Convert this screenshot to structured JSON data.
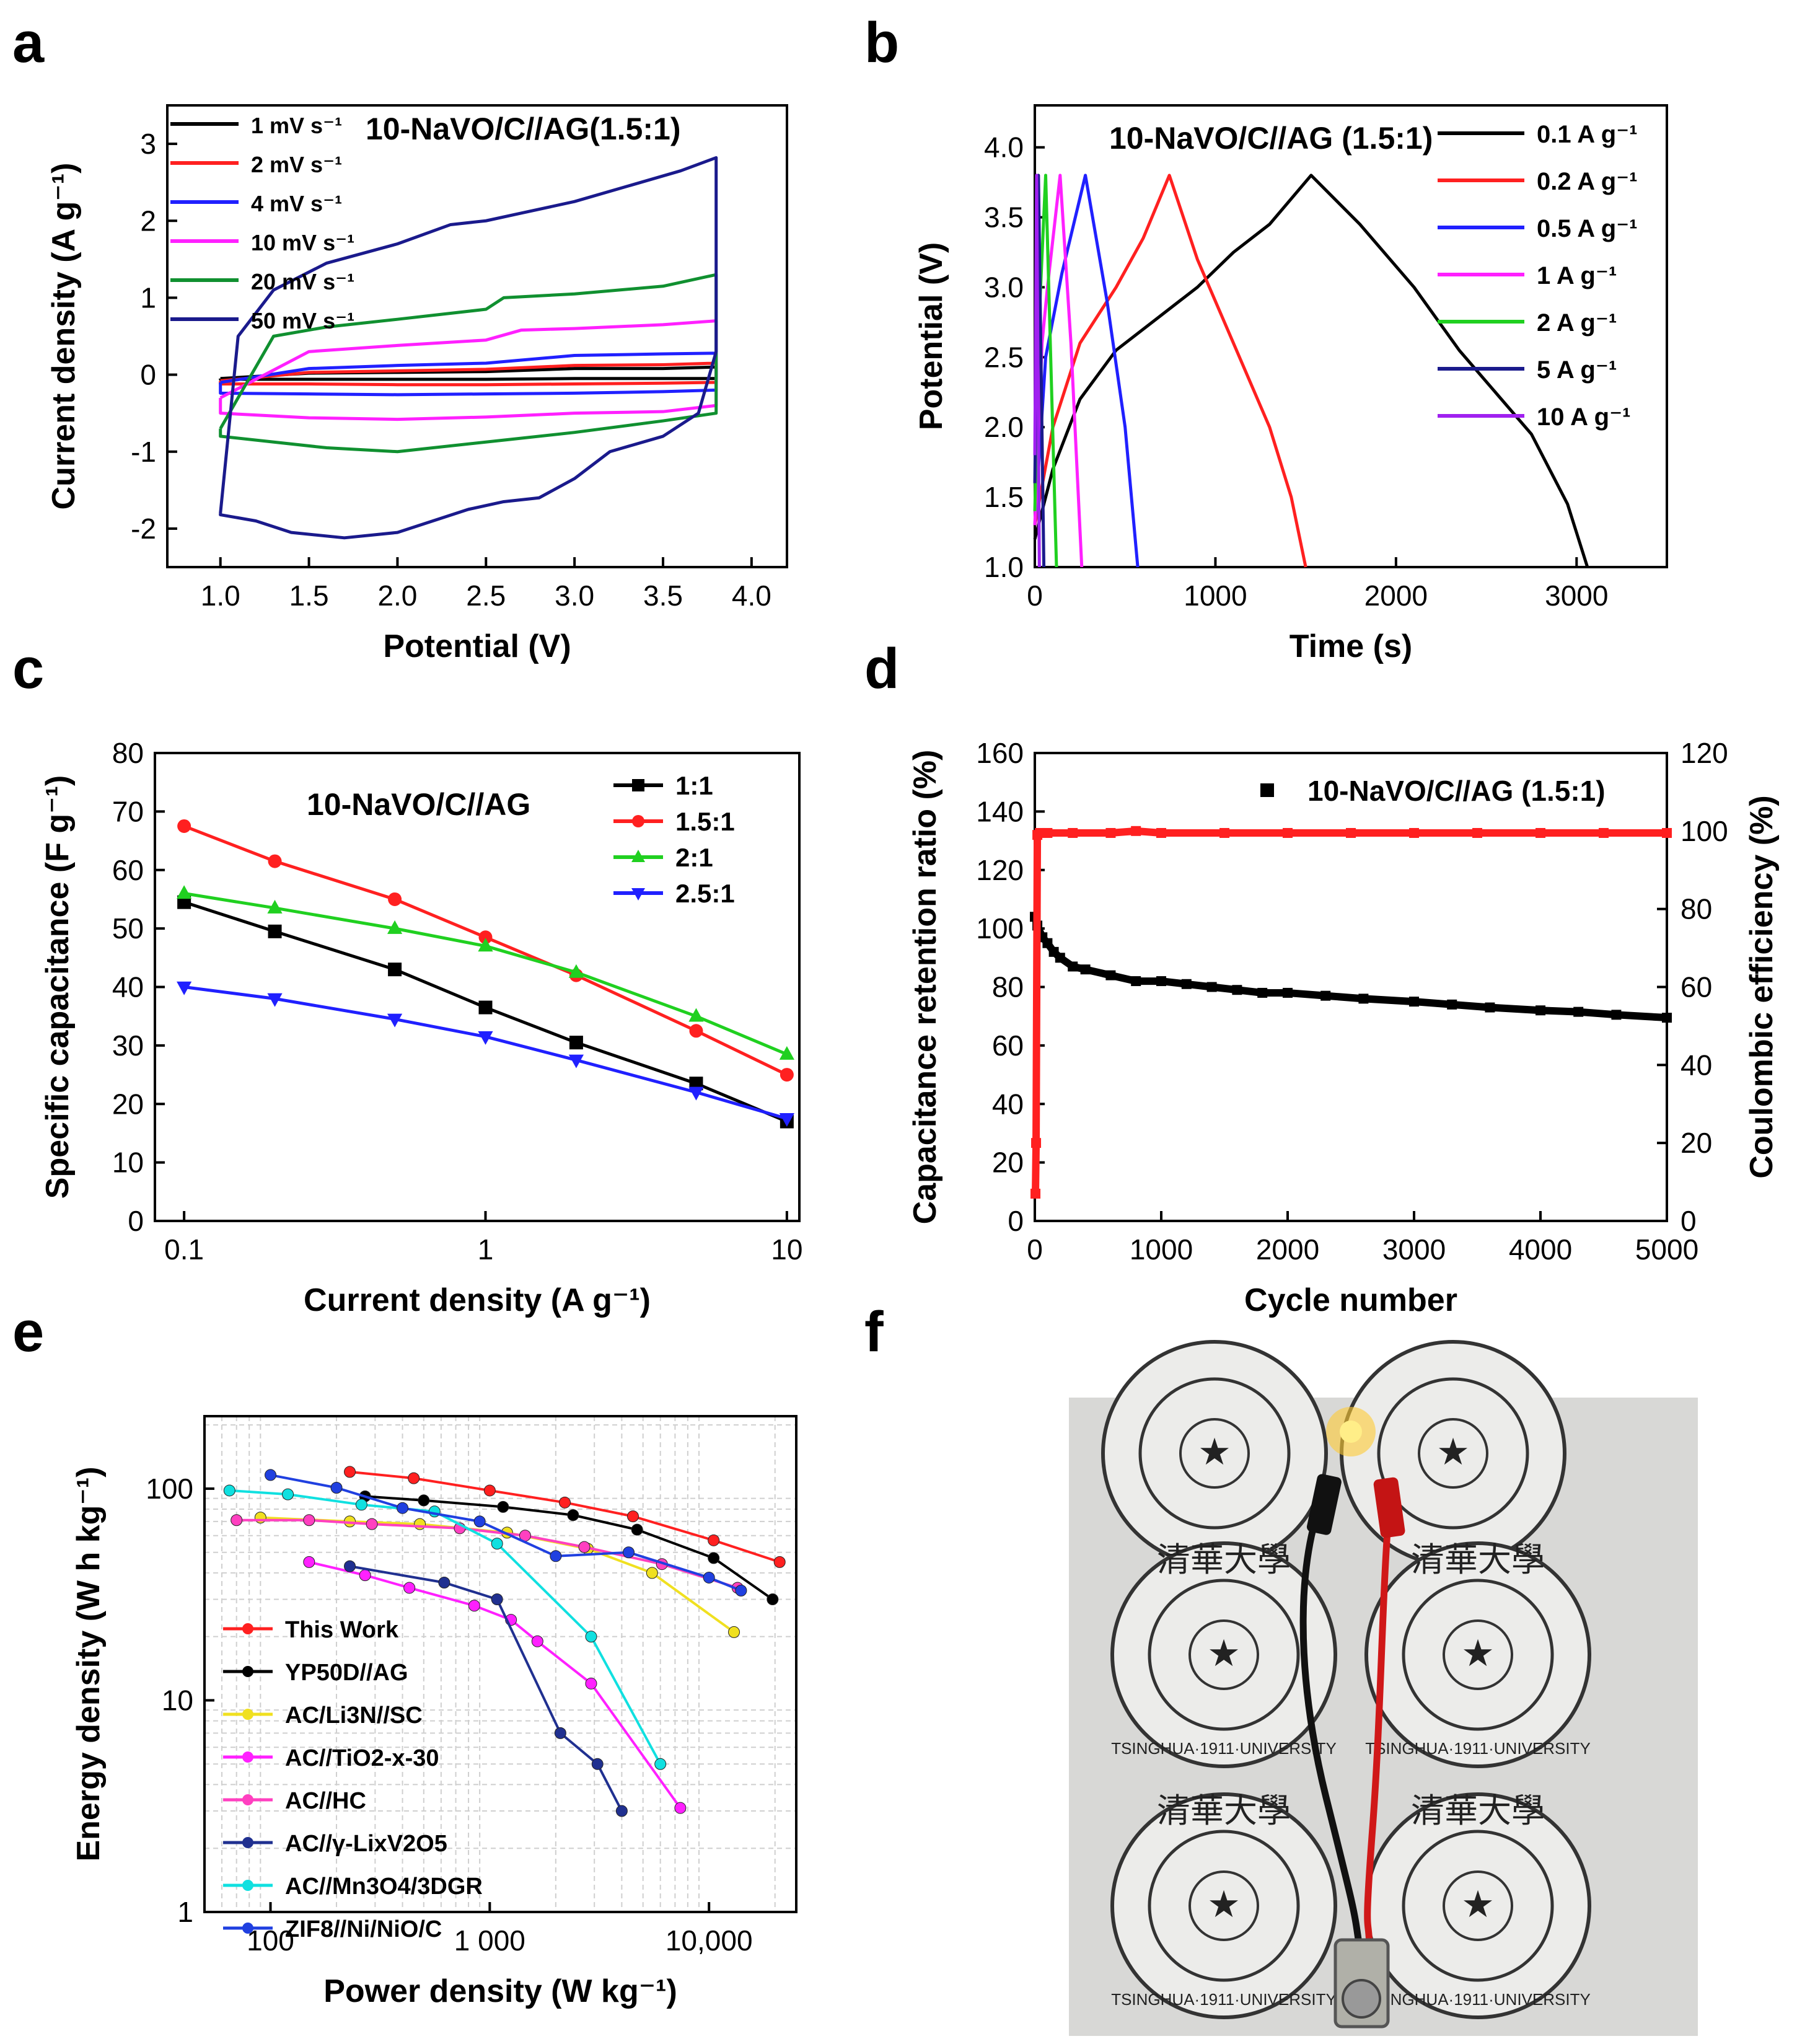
{
  "panels": {
    "a": {
      "label": "a"
    },
    "b": {
      "label": "b"
    },
    "c": {
      "label": "c"
    },
    "d": {
      "label": "d"
    },
    "e": {
      "label": "e"
    },
    "f": {
      "label": "f",
      "seal_text": "TSINGHUA·1911·UNIVERSITY",
      "seal_chars": "清華大學"
    }
  },
  "colors": {
    "black": "#000000",
    "red": "#ff2020",
    "blue": "#2020ff",
    "magenta": "#ff20ff",
    "green": "#109030",
    "navy": "#1a1a8c",
    "lime": "#20d020",
    "yellow": "#f0e020",
    "pink": "#ff40c0",
    "darkblue": "#203090",
    "cyan": "#10e0e0",
    "purple": "#a020f0",
    "royal": "#2040e0"
  },
  "chart_data": [
    {
      "id": "a",
      "type": "line",
      "title": "10-NaVO/C//AG(1.5:1)",
      "xlabel": "Potential (V)",
      "ylabel": "Current density (A g⁻¹)",
      "xlim": [
        0.7,
        4.2
      ],
      "ylim": [
        -2.5,
        3.5
      ],
      "xticks": [
        "1.0",
        "1.5",
        "2.0",
        "2.5",
        "3.0",
        "3.5",
        "4.0"
      ],
      "xtick_values": [
        1.0,
        1.5,
        2.0,
        2.5,
        3.0,
        3.5,
        4.0
      ],
      "yticks": [
        "-2",
        "-1",
        "0",
        "1",
        "2",
        "3"
      ],
      "ytick_values": [
        -2,
        -1,
        0,
        1,
        2,
        3
      ],
      "legend_position": "top-left",
      "series": [
        {
          "name": "1 mV s⁻¹",
          "color": "#000000",
          "x": [
            1.0,
            1.5,
            2.0,
            2.5,
            3.0,
            3.5,
            3.8,
            3.8,
            3.5,
            3.0,
            2.5,
            2.0,
            1.5,
            1.0,
            1.0
          ],
          "y": [
            -0.05,
            0.02,
            0.03,
            0.04,
            0.08,
            0.08,
            0.1,
            -0.05,
            -0.05,
            -0.05,
            -0.06,
            -0.06,
            -0.06,
            -0.06,
            -0.05
          ]
        },
        {
          "name": "2 mV s⁻¹",
          "color": "#ff2020",
          "x": [
            1.0,
            1.5,
            2.0,
            2.5,
            3.0,
            3.5,
            3.8,
            3.8,
            3.5,
            3.0,
            2.5,
            2.0,
            1.5,
            1.0,
            1.0
          ],
          "y": [
            -0.08,
            0.03,
            0.05,
            0.07,
            0.12,
            0.13,
            0.15,
            -0.1,
            -0.11,
            -0.12,
            -0.13,
            -0.13,
            -0.12,
            -0.12,
            -0.08
          ]
        },
        {
          "name": "4 mV s⁻¹",
          "color": "#2020ff",
          "x": [
            1.0,
            1.5,
            2.0,
            2.5,
            3.0,
            3.5,
            3.8,
            3.8,
            3.5,
            3.0,
            2.5,
            2.0,
            1.5,
            1.0,
            1.0
          ],
          "y": [
            -0.1,
            0.08,
            0.12,
            0.15,
            0.25,
            0.27,
            0.28,
            -0.2,
            -0.22,
            -0.24,
            -0.25,
            -0.26,
            -0.25,
            -0.24,
            -0.1
          ]
        },
        {
          "name": "10 mV s⁻¹",
          "color": "#ff20ff",
          "x": [
            1.0,
            1.5,
            2.0,
            2.5,
            2.7,
            3.0,
            3.5,
            3.8,
            3.8,
            3.5,
            3.0,
            2.5,
            2.0,
            1.5,
            1.0,
            1.0
          ],
          "y": [
            -0.3,
            0.3,
            0.38,
            0.45,
            0.58,
            0.6,
            0.65,
            0.7,
            -0.4,
            -0.48,
            -0.5,
            -0.55,
            -0.58,
            -0.56,
            -0.5,
            -0.3
          ]
        },
        {
          "name": "20 mV s⁻¹",
          "color": "#109030",
          "x": [
            1.0,
            1.3,
            1.6,
            2.0,
            2.5,
            2.6,
            3.0,
            3.5,
            3.8,
            3.8,
            3.5,
            3.0,
            2.6,
            2.0,
            1.6,
            1.0,
            1.0
          ],
          "y": [
            -0.7,
            0.5,
            0.62,
            0.72,
            0.85,
            1.0,
            1.05,
            1.15,
            1.3,
            -0.5,
            -0.6,
            -0.75,
            -0.85,
            -1.0,
            -0.95,
            -0.8,
            -0.7
          ]
        },
        {
          "name": "50 mV s⁻¹",
          "color": "#1a1a8c",
          "x": [
            1.0,
            1.1,
            1.3,
            1.6,
            2.0,
            2.3,
            2.5,
            2.7,
            3.0,
            3.3,
            3.6,
            3.8,
            3.8,
            3.7,
            3.5,
            3.2,
            3.0,
            2.8,
            2.6,
            2.4,
            2.2,
            2.0,
            1.7,
            1.4,
            1.2,
            1.0,
            1.0
          ],
          "y": [
            -1.8,
            0.5,
            1.1,
            1.45,
            1.7,
            1.95,
            2.0,
            2.1,
            2.25,
            2.45,
            2.65,
            2.82,
            0.3,
            -0.5,
            -0.8,
            -1.0,
            -1.35,
            -1.6,
            -1.65,
            -1.75,
            -1.9,
            -2.05,
            -2.12,
            -2.05,
            -1.9,
            -1.82,
            -1.8
          ]
        }
      ]
    },
    {
      "id": "b",
      "type": "line",
      "title": "10-NaVO/C//AG (1.5:1)",
      "xlabel": "Time (s)",
      "ylabel": "Potential (V)",
      "xlim": [
        0,
        3500
      ],
      "ylim": [
        1.0,
        4.3
      ],
      "xticks": [
        "0",
        "1000",
        "2000",
        "3000"
      ],
      "xtick_values": [
        0,
        1000,
        2000,
        3000
      ],
      "yticks": [
        "1.0",
        "1.5",
        "2.0",
        "2.5",
        "3.0",
        "3.5",
        "4.0"
      ],
      "ytick_values": [
        1.0,
        1.5,
        2.0,
        2.5,
        3.0,
        3.5,
        4.0
      ],
      "legend_position": "top-right",
      "series": [
        {
          "name": "0.1 A g⁻¹",
          "color": "#000000",
          "x": [
            0,
            100,
            250,
            450,
            700,
            900,
            1100,
            1300,
            1530,
            1800,
            2100,
            2350,
            2550,
            2750,
            2950,
            3060
          ],
          "y": [
            1.2,
            1.7,
            2.2,
            2.55,
            2.8,
            3.0,
            3.25,
            3.45,
            3.8,
            3.45,
            3.0,
            2.55,
            2.25,
            1.95,
            1.45,
            1.0
          ]
        },
        {
          "name": "0.2 A g⁻¹",
          "color": "#ff2020",
          "x": [
            0,
            100,
            250,
            450,
            600,
            745,
            900,
            1100,
            1300,
            1420,
            1500
          ],
          "y": [
            1.3,
            2.0,
            2.6,
            3.0,
            3.35,
            3.8,
            3.2,
            2.6,
            2.0,
            1.5,
            1.0
          ]
        },
        {
          "name": "0.5 A g⁻¹",
          "color": "#2020ff",
          "x": [
            0,
            60,
            150,
            280,
            400,
            500,
            570
          ],
          "y": [
            1.3,
            2.5,
            3.1,
            3.8,
            2.9,
            2.0,
            1.0
          ]
        },
        {
          "name": "1 A g⁻¹",
          "color": "#ff20ff",
          "x": [
            0,
            40,
            70,
            140,
            200,
            260
          ],
          "y": [
            1.3,
            2.6,
            3.0,
            3.8,
            2.6,
            1.0
          ]
        },
        {
          "name": "2 A g⁻¹",
          "color": "#20d020",
          "x": [
            0,
            25,
            60,
            120
          ],
          "y": [
            1.4,
            2.8,
            3.8,
            1.0
          ]
        },
        {
          "name": "5 A g⁻¹",
          "color": "#1a1a8c",
          "x": [
            0,
            20,
            50
          ],
          "y": [
            1.6,
            3.8,
            1.0
          ]
        },
        {
          "name": "10 A g⁻¹",
          "color": "#a020f0",
          "x": [
            0,
            10,
            25
          ],
          "y": [
            1.8,
            3.8,
            1.0
          ]
        }
      ]
    },
    {
      "id": "c",
      "type": "line",
      "scale_x": "log",
      "title": "10-NaVO/C//AG",
      "xlabel": "Current density (A g⁻¹)",
      "ylabel": "Specific capacitance  (F g⁻¹)",
      "xlim": [
        0.08,
        11
      ],
      "ylim": [
        0,
        80
      ],
      "xticks": [
        "0.1",
        "1",
        "10"
      ],
      "xtick_values": [
        0.1,
        1,
        10
      ],
      "yticks": [
        "0",
        "10",
        "20",
        "30",
        "40",
        "50",
        "60",
        "70",
        "80"
      ],
      "ytick_values": [
        0,
        10,
        20,
        30,
        40,
        50,
        60,
        70,
        80
      ],
      "legend_position": "top-right",
      "x": [
        0.1,
        0.2,
        0.5,
        1,
        2,
        5,
        10
      ],
      "series": [
        {
          "name": "1:1",
          "color": "#000000",
          "marker": "square",
          "values": [
            54.5,
            49.5,
            43,
            36.5,
            30.5,
            23.5,
            17
          ]
        },
        {
          "name": "1.5:1",
          "color": "#ff2020",
          "marker": "circle",
          "values": [
            67.5,
            61.5,
            55,
            48.5,
            42,
            32.5,
            25
          ]
        },
        {
          "name": "2:1",
          "color": "#20d020",
          "marker": "triangle-up",
          "values": [
            56,
            53.5,
            50,
            47,
            42.5,
            35,
            28.5
          ]
        },
        {
          "name": "2.5:1",
          "color": "#2020ff",
          "marker": "triangle-down",
          "values": [
            40,
            38,
            34.5,
            31.5,
            27.5,
            22,
            17.5
          ]
        }
      ]
    },
    {
      "id": "d",
      "type": "scatter",
      "title": "",
      "xlabel": "Cycle number",
      "ylabel": "Capacitance retention ratio (%)",
      "y2label": "Coulombic efficiency (%)",
      "xlim": [
        0,
        5000
      ],
      "ylim": [
        0,
        160
      ],
      "y2lim": [
        0,
        120
      ],
      "xticks": [
        "0",
        "1000",
        "2000",
        "3000",
        "4000",
        "5000"
      ],
      "xtick_values": [
        0,
        1000,
        2000,
        3000,
        4000,
        5000
      ],
      "yticks": [
        "0",
        "20",
        "40",
        "60",
        "80",
        "100",
        "120",
        "140",
        "160"
      ],
      "ytick_values": [
        0,
        20,
        40,
        60,
        80,
        100,
        120,
        140,
        160
      ],
      "y2ticks": [
        "0",
        "20",
        "40",
        "60",
        "80",
        "100",
        "120"
      ],
      "y2tick_values": [
        0,
        20,
        40,
        60,
        80,
        100,
        120
      ],
      "legend": "10-NaVO/C//AG (1.5:1)",
      "legend_position": "top-right",
      "series": [
        {
          "name": "Capacitance retention",
          "color": "#000000",
          "axis": "left",
          "x": [
            0,
            20,
            60,
            100,
            150,
            200,
            300,
            400,
            600,
            800,
            1000,
            1200,
            1400,
            1600,
            1800,
            2000,
            2300,
            2600,
            3000,
            3300,
            3600,
            4000,
            4300,
            4600,
            5000
          ],
          "values": [
            104,
            101,
            97,
            95,
            92,
            90,
            87,
            86,
            84,
            82,
            82,
            81,
            80,
            79,
            78,
            78,
            77,
            76,
            75,
            74,
            73,
            72,
            71.5,
            70.5,
            69.5
          ]
        },
        {
          "name": "Coulombic efficiency",
          "color": "#ff2020",
          "axis": "right",
          "x": [
            5,
            10,
            20,
            40,
            100,
            300,
            600,
            800,
            1000,
            1500,
            2000,
            2500,
            3000,
            3500,
            4000,
            4500,
            5000
          ],
          "values": [
            7,
            20,
            99,
            99.5,
            99.5,
            99.5,
            99.5,
            100,
            99.5,
            99.5,
            99.5,
            99.5,
            99.5,
            99.5,
            99.5,
            99.5,
            99.5
          ]
        }
      ]
    },
    {
      "id": "e",
      "type": "line",
      "scale_x": "log",
      "scale_y": "log",
      "title": "",
      "xlabel": "Power density (W kg⁻¹)",
      "ylabel": "Energy density (W h kg⁻¹)",
      "xlim": [
        50,
        25000
      ],
      "ylim": [
        1,
        220
      ],
      "xticks": [
        "100",
        "1 000",
        "10,000"
      ],
      "xtick_values": [
        100,
        1000,
        10000
      ],
      "yticks": [
        "1",
        "10",
        "100"
      ],
      "ytick_values": [
        1,
        10,
        100
      ],
      "legend_position": "bottom-left",
      "series": [
        {
          "name": "This Work",
          "color": "#ff2020",
          "x": [
            230,
            450,
            1000,
            2200,
            4500,
            10500,
            21000
          ],
          "values": [
            120,
            112,
            98,
            86,
            74,
            57,
            45
          ]
        },
        {
          "name": "YP50D//AG",
          "color": "#000000",
          "x": [
            270,
            500,
            1150,
            2400,
            4700,
            10500,
            19500
          ],
          "values": [
            92,
            88,
            82,
            75,
            64,
            47,
            30
          ]
        },
        {
          "name": "AC/Li3N//SC",
          "color": "#f0e020",
          "x": [
            90,
            230,
            480,
            1200,
            2800,
            5500,
            13000
          ],
          "values": [
            73,
            70,
            68,
            62,
            52,
            40,
            21
          ]
        },
        {
          "name": "AC//TiO2-x-30",
          "color": "#ff20ff",
          "x": [
            150,
            270,
            430,
            850,
            1250,
            1650,
            2900,
            7400
          ],
          "values": [
            45,
            39,
            34,
            28,
            24,
            19,
            12,
            3.1
          ]
        },
        {
          "name": "AC//HC",
          "color": "#ff40c0",
          "x": [
            70,
            150,
            290,
            730,
            1450,
            2700,
            6100,
            13500
          ],
          "values": [
            71,
            71,
            68,
            65,
            60,
            53,
            44,
            34
          ]
        },
        {
          "name": "AC//γ-LixV2O5",
          "color": "#203090",
          "x": [
            230,
            620,
            1080,
            2100,
            3100,
            4000
          ],
          "values": [
            43,
            36,
            30,
            7,
            5,
            3
          ]
        },
        {
          "name": "AC//Mn3O4/3DGR",
          "color": "#10e0e0",
          "x": [
            65,
            120,
            260,
            560,
            1080,
            2900,
            6000
          ],
          "values": [
            98,
            94,
            84,
            78,
            55,
            20,
            5
          ]
        },
        {
          "name": "ZIF8//Ni/NiO/C",
          "color": "#2040e0",
          "x": [
            100,
            200,
            400,
            900,
            2000,
            4300,
            10000,
            14000
          ],
          "values": [
            116,
            101,
            81,
            70,
            48,
            50,
            38,
            33
          ]
        }
      ]
    }
  ]
}
